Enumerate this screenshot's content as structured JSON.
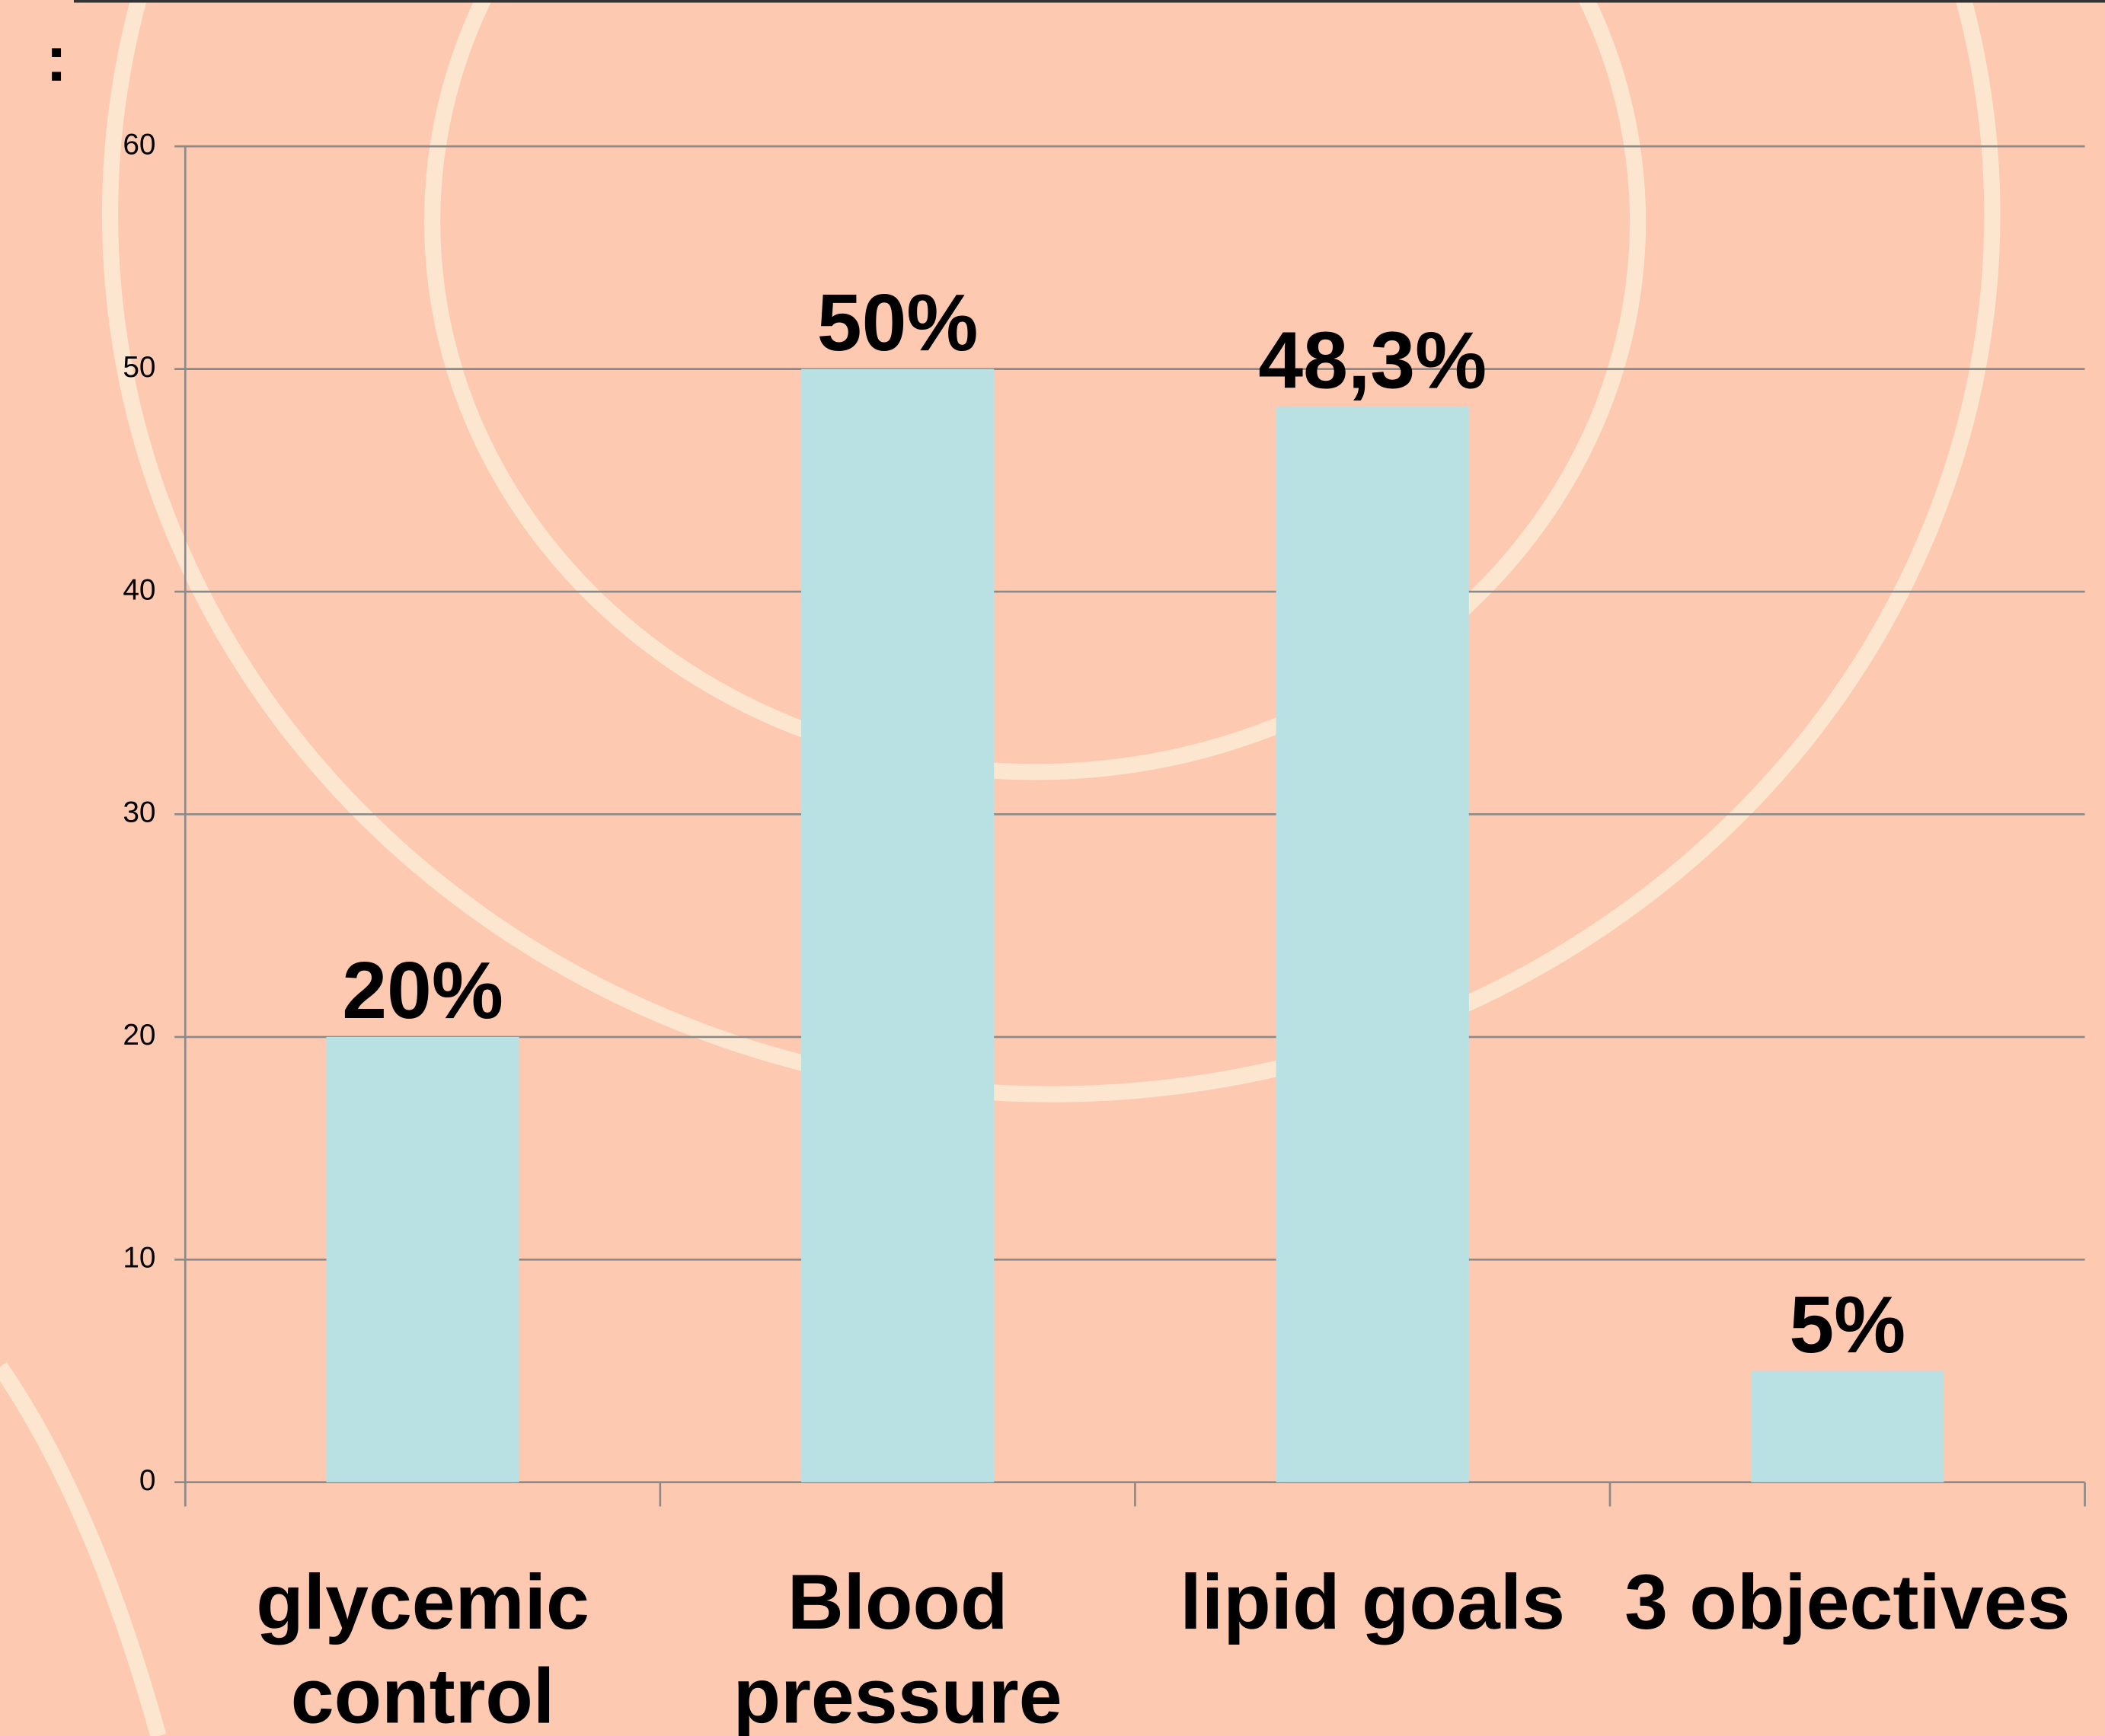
{
  "chart_data": {
    "type": "bar",
    "annotations": [
      ":"
    ],
    "categories": [
      "glycemic\ncontrol",
      "Blood\npressure",
      "lipid goals",
      "3 objectives"
    ],
    "values": [
      20,
      50,
      48.3,
      5
    ],
    "value_labels": [
      "20%",
      "50%",
      "48,3%",
      "5%"
    ],
    "color": "#b9e0e3",
    "ylim": [
      0,
      60
    ],
    "yticks": [
      0,
      10,
      20,
      30,
      40,
      50,
      60
    ],
    "grid": true
  }
}
